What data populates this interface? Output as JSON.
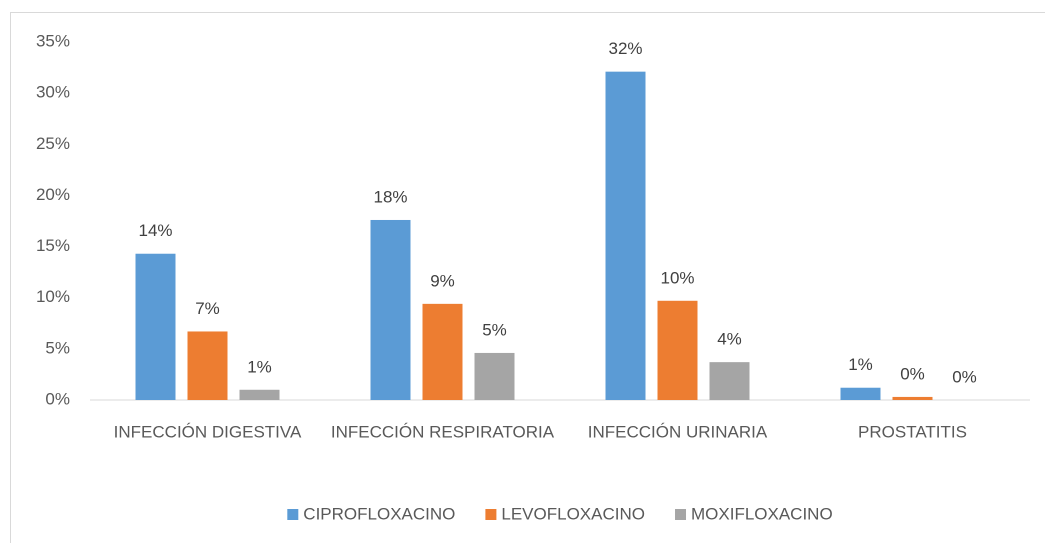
{
  "chart_data": {
    "type": "bar",
    "categories": [
      "INFECCIÓN DIGESTIVA",
      "INFECCIÓN RESPIRATORIA",
      "INFECCIÓN URINARIA",
      "PROSTATITIS"
    ],
    "series": [
      {
        "name": "CIPROFLOXACINO",
        "color": "#5b9bd5",
        "values": [
          14.3,
          17.6,
          32.1,
          1.2
        ],
        "value_labels": [
          "14%",
          "18%",
          "32%",
          "1%"
        ]
      },
      {
        "name": "LEVOFLOXACINO",
        "color": "#ed7d31",
        "values": [
          6.7,
          9.4,
          9.7,
          0.3
        ],
        "value_labels": [
          "7%",
          "9%",
          "10%",
          "0%"
        ]
      },
      {
        "name": "MOXIFLOXACINO",
        "color": "#a5a5a5",
        "values": [
          1.0,
          4.6,
          3.7,
          0
        ],
        "value_labels": [
          "1%",
          "5%",
          "4%",
          "0%"
        ]
      }
    ],
    "ylim": [
      0,
      35
    ],
    "yticks": [
      {
        "value": 0,
        "label": "0%"
      },
      {
        "value": 5,
        "label": "5%"
      },
      {
        "value": 10,
        "label": "10%"
      },
      {
        "value": 15,
        "label": "15%"
      },
      {
        "value": 20,
        "label": "20%"
      },
      {
        "value": 25,
        "label": "25%"
      },
      {
        "value": 30,
        "label": "30%"
      },
      {
        "value": 35,
        "label": "35%"
      }
    ],
    "legend": "bottom"
  }
}
